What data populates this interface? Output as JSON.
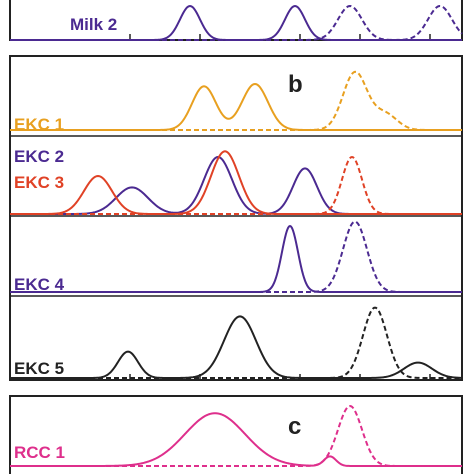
{
  "chart_data": [
    {
      "type": "line",
      "panel_letter": "",
      "labels": [
        "Milk 2"
      ],
      "series": [
        {
          "name": "Milk 2",
          "color": "#4b2a91",
          "peaks": [
            {
              "x": 190,
              "h": 1.0,
              "w": 10,
              "style": "solid"
            },
            {
              "x": 295,
              "h": 1.0,
              "w": 10,
              "style": "solid"
            },
            {
              "x": 350,
              "h": 1.0,
              "w": 12,
              "style": "dashed"
            },
            {
              "x": 440,
              "h": 1.0,
              "w": 12,
              "style": "dashed"
            }
          ]
        }
      ]
    },
    {
      "type": "line",
      "panel_letter": "b",
      "labels": [
        "EKC 1",
        "EKC 2",
        "EKC 3",
        "EKC 4",
        "EKC 5"
      ],
      "series": [
        {
          "name": "EKC 1",
          "color": "#e8a020",
          "peaks": [
            {
              "x": 204,
              "h": 0.95,
              "w": 12,
              "style": "solid"
            },
            {
              "x": 255,
              "h": 1.0,
              "w": 13,
              "style": "solid"
            },
            {
              "x": 355,
              "h": 1.25,
              "w": 12,
              "style": "dashed"
            },
            {
              "x": 385,
              "h": 0.35,
              "w": 12,
              "style": "dashed"
            }
          ]
        },
        {
          "name": "EKC 2",
          "color": "#4b2a91",
          "peaks": [
            {
              "x": 132,
              "h": 0.7,
              "w": 16,
              "style": "solid"
            },
            {
              "x": 218,
              "h": 1.5,
              "w": 14,
              "style": "solid"
            },
            {
              "x": 305,
              "h": 1.2,
              "w": 12,
              "style": "solid"
            }
          ]
        },
        {
          "name": "EKC 3",
          "color": "#e04226",
          "peaks": [
            {
              "x": 98,
              "h": 1.0,
              "w": 14,
              "style": "solid"
            },
            {
              "x": 225,
              "h": 1.65,
              "w": 14,
              "style": "solid"
            },
            {
              "x": 352,
              "h": 1.5,
              "w": 10,
              "style": "dashed"
            }
          ]
        },
        {
          "name": "EKC 4",
          "color": "#4b2a91",
          "peaks": [
            {
              "x": 290,
              "h": 1.5,
              "w": 8,
              "style": "solid"
            },
            {
              "x": 355,
              "h": 1.6,
              "w": 12,
              "style": "dashed"
            }
          ]
        },
        {
          "name": "EKC 5",
          "color": "#222222",
          "peaks": [
            {
              "x": 128,
              "h": 0.6,
              "w": 10,
              "style": "solid"
            },
            {
              "x": 240,
              "h": 1.4,
              "w": 16,
              "style": "solid"
            },
            {
              "x": 375,
              "h": 1.6,
              "w": 12,
              "style": "dashed"
            },
            {
              "x": 418,
              "h": 0.35,
              "w": 14,
              "style": "solid"
            }
          ]
        }
      ]
    },
    {
      "type": "line",
      "panel_letter": "c",
      "labels": [
        "RCC 1"
      ],
      "series": [
        {
          "name": "RCC 1",
          "color": "#de2f8c",
          "peaks": [
            {
              "x": 215,
              "h": 1.1,
              "w": 30,
              "style": "solid"
            },
            {
              "x": 330,
              "h": 0.2,
              "w": 6,
              "style": "solid"
            },
            {
              "x": 350,
              "h": 1.25,
              "w": 12,
              "style": "dashed"
            }
          ]
        }
      ]
    }
  ]
}
